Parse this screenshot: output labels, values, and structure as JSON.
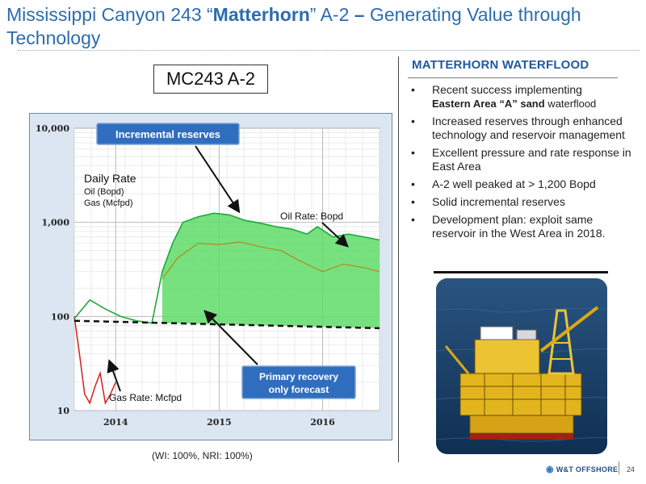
{
  "title": {
    "part1": "Mississippi Canyon 243 “",
    "bold1": "Matterhorn",
    "part2": "” A-2 ",
    "bold2": "–",
    "part3": " Generating Value through Technology"
  },
  "well_label": "MC243  A-2",
  "wi_note": "(WI: 100%, NRI: 100%)",
  "panel": {
    "heading": "MATTERHORN WATERFLOOD",
    "bullets": [
      {
        "line1": "Recent success implementing",
        "line2_bold": "Eastern Area “A” sand",
        "line2_rest": " waterflood"
      },
      {
        "text": "Increased reserves through enhanced technology and reservoir management"
      },
      {
        "text": "Excellent pressure and rate response in East Area"
      },
      {
        "text": "A-2 well peaked at > 1,200 Bopd"
      },
      {
        "text": "Solid incremental reserves"
      },
      {
        "text": "Development plan:  exploit same reservoir in the West Area in 2018."
      }
    ]
  },
  "footer": {
    "logo": "W&T OFFSHORE",
    "page": "24"
  },
  "chart_data": {
    "type": "line",
    "y_scale": "log",
    "ylim": [
      10,
      10000
    ],
    "yticks": [
      "10,000",
      "1,000",
      "100",
      "10"
    ],
    "xticks": [
      "2014",
      "2015",
      "2016"
    ],
    "annotations": {
      "incremental": "Incremental reserves",
      "daily_rate": "Daily Rate",
      "oil_units": "Oil (Bopd)",
      "gas_units": "Gas (Mcfpd)",
      "oil_rate": "Oil Rate:  Bopd",
      "gas_rate": "Gas Rate:  Mcfpd",
      "primary_line1": "Primary recovery",
      "primary_line2": "only forecast"
    },
    "series": [
      {
        "name": "Oil Rate:  Bopd",
        "color": "#1fa83a",
        "x": [
          2013.6,
          2013.75,
          2013.9,
          2014.05,
          2014.2,
          2014.35,
          2014.45,
          2014.55,
          2014.65,
          2014.8,
          2014.95,
          2015.1,
          2015.25,
          2015.4,
          2015.55,
          2015.7,
          2015.85,
          2015.95,
          2016.1,
          2016.25,
          2016.4,
          2016.55
        ],
        "y": [
          95,
          150,
          120,
          100,
          90,
          85,
          300,
          600,
          1000,
          1150,
          1250,
          1200,
          1050,
          980,
          900,
          850,
          750,
          900,
          700,
          750,
          700,
          650
        ]
      },
      {
        "name": "Gas Rate:  Mcfpd",
        "color": "#d42020",
        "x": [
          2013.6,
          2013.65,
          2013.7,
          2013.75,
          2013.8,
          2013.85,
          2013.9,
          2013.95,
          2014.0
        ],
        "y": [
          100,
          40,
          15,
          12,
          18,
          25,
          12,
          15,
          20
        ]
      },
      {
        "name": "Oil forecast",
        "color": "#b58a1a",
        "x": [
          2014.45,
          2014.6,
          2014.8,
          2015.0,
          2015.2,
          2015.4,
          2015.6,
          2015.8,
          2016.0,
          2016.2,
          2016.4,
          2016.55
        ],
        "y": [
          250,
          420,
          600,
          580,
          620,
          550,
          500,
          380,
          300,
          360,
          330,
          300
        ]
      },
      {
        "name": "Primary recovery only forecast",
        "color": "#111111",
        "x": [
          2013.6,
          2016.55
        ],
        "y": [
          90,
          75
        ]
      }
    ]
  }
}
